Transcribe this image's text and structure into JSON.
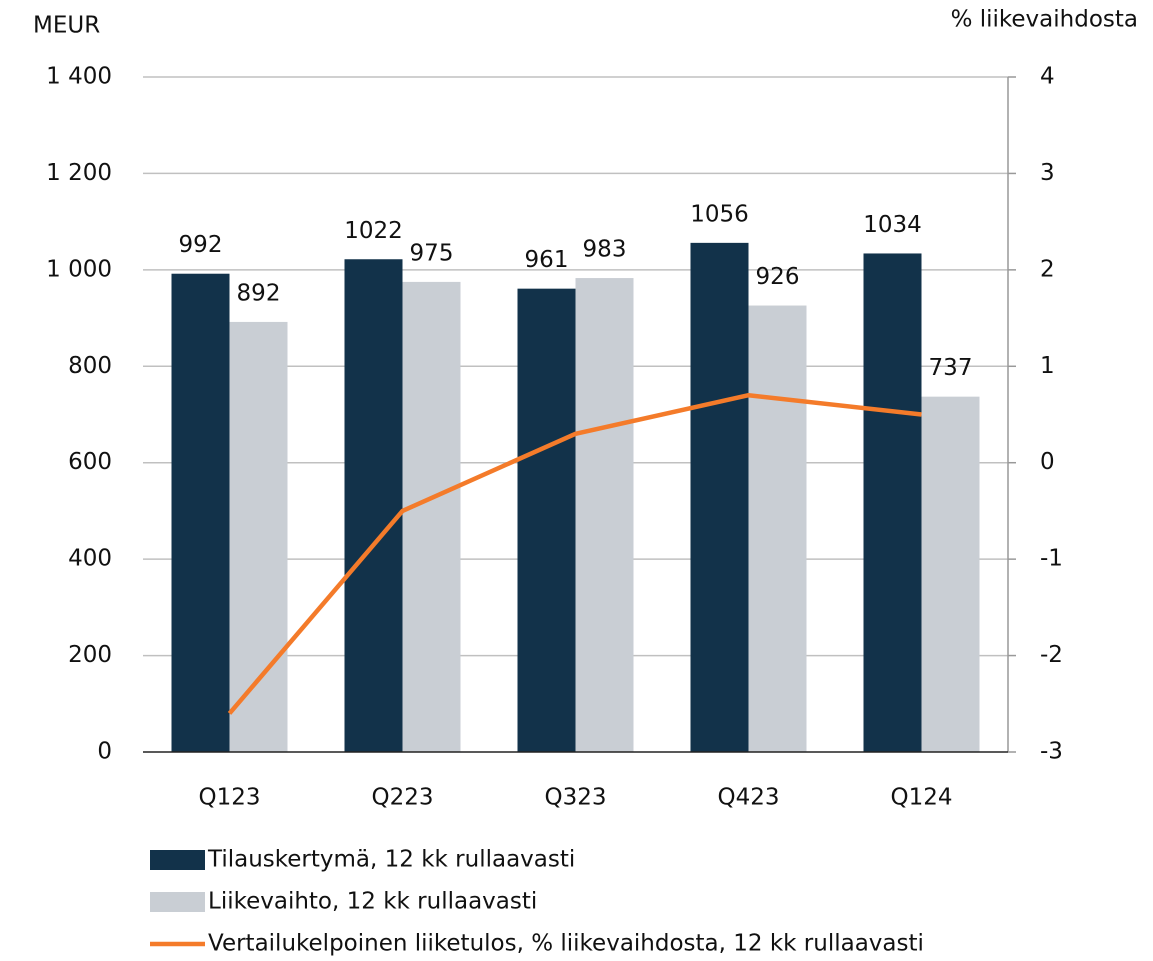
{
  "chart_data": {
    "type": "bar-line",
    "y_label": "MEUR",
    "y2_label": "% liikevaihdosta",
    "categories": [
      "Q123",
      "Q223",
      "Q323",
      "Q423",
      "Q124"
    ],
    "series": [
      {
        "name": "Tilauskertymä, 12 kk rullaavasti",
        "type": "bar",
        "color": "#12324a",
        "values": [
          992,
          1022,
          961,
          1056,
          1034
        ]
      },
      {
        "name": "Liikevaihto, 12 kk rullaavasti",
        "type": "bar",
        "color": "#c9ced4",
        "values": [
          892,
          975,
          983,
          926,
          737
        ]
      },
      {
        "name": "Vertailukelpoinen liiketulos, % liikevaihdosta, 12 kk rullaavasti",
        "type": "line",
        "axis": "y2",
        "color": "#f47b2a",
        "values": [
          -2.6,
          -0.5,
          0.3,
          0.7,
          0.5
        ]
      }
    ],
    "ylim": [
      0,
      1400
    ],
    "yticks": [
      0,
      200,
      400,
      600,
      800,
      {
        "value": 1000,
        "label": "1 000"
      },
      {
        "value": 1200,
        "label": "1 200"
      },
      {
        "value": 1400,
        "label": "1 400"
      }
    ],
    "y2lim": [
      -3,
      4
    ],
    "y2ticks": [
      -3,
      -2,
      -1,
      0,
      1,
      2,
      3,
      4
    ],
    "grid": true,
    "legend": "bottom"
  }
}
